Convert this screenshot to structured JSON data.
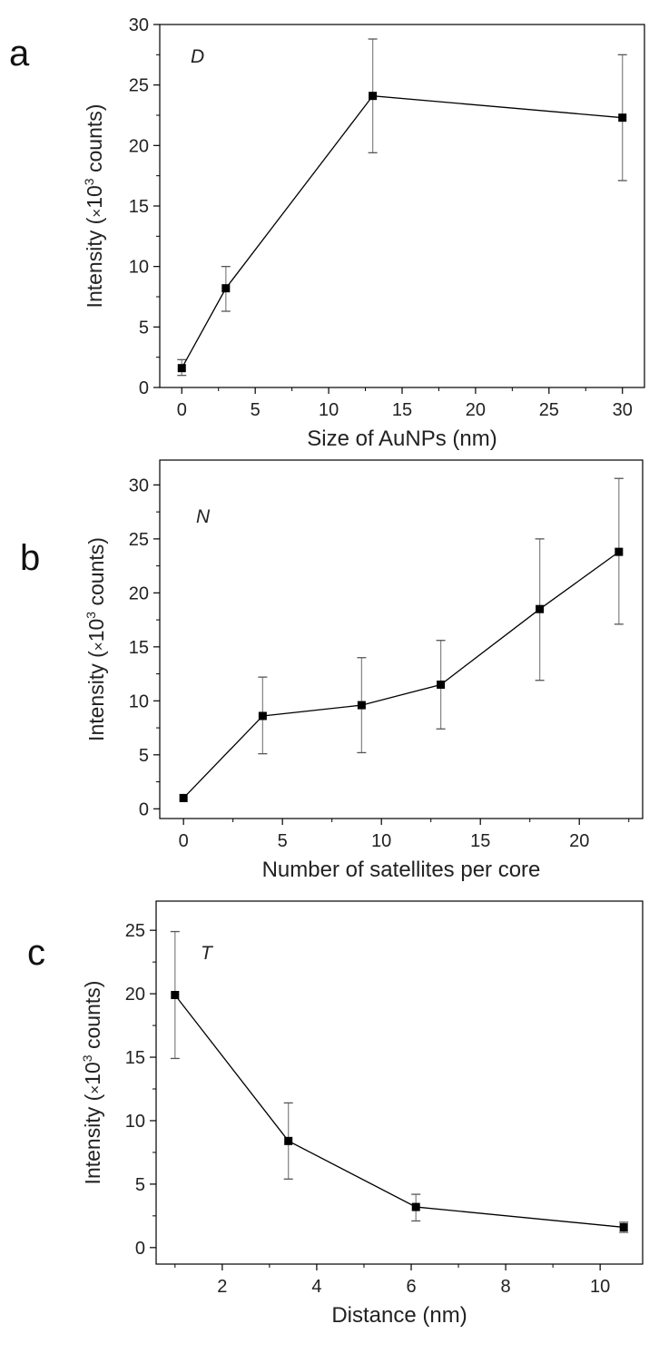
{
  "chart_data": [
    {
      "type": "line",
      "panel_letter": "a",
      "annotation": "D",
      "xlabel": "Size of AuNPs (nm)",
      "ylabel_prefix": "Intensity (",
      "ylabel_times": "×",
      "ylabel_base": "10",
      "ylabel_sup": "3",
      "ylabel_suffix": " counts)",
      "xlim": [
        -1.5,
        31.5
      ],
      "ylim": [
        0,
        30
      ],
      "xticks": [
        0,
        5,
        10,
        15,
        20,
        25,
        30
      ],
      "yticks": [
        0,
        5,
        10,
        15,
        20,
        25,
        30
      ],
      "grid": false,
      "series": [
        {
          "x": [
            0,
            3,
            13,
            30
          ],
          "y": [
            1.6,
            8.2,
            24.1,
            22.3
          ],
          "err_low": [
            1.0,
            6.3,
            19.4,
            17.1
          ],
          "err_high": [
            2.3,
            10.0,
            28.8,
            27.5
          ]
        }
      ]
    },
    {
      "type": "line",
      "panel_letter": "b",
      "annotation": "N",
      "xlabel": "Number of satellites per core",
      "ylabel_prefix": "Intensity (",
      "ylabel_times": "×",
      "ylabel_base": "10",
      "ylabel_sup": "3",
      "ylabel_suffix": " counts)",
      "xlim": [
        -1.2,
        23.2
      ],
      "ylim": [
        -0.9,
        32.3
      ],
      "xticks": [
        0,
        5,
        10,
        15,
        20
      ],
      "yticks": [
        0,
        5,
        10,
        15,
        20,
        25,
        30
      ],
      "grid": false,
      "series": [
        {
          "x": [
            0,
            4,
            9,
            13,
            18,
            22
          ],
          "y": [
            1.0,
            8.6,
            9.6,
            11.5,
            18.5,
            23.8
          ],
          "err_low": [
            1.0,
            5.1,
            5.2,
            7.4,
            11.9,
            17.1
          ],
          "err_high": [
            1.0,
            12.2,
            14.0,
            15.6,
            25.0,
            30.6
          ]
        }
      ]
    },
    {
      "type": "line",
      "panel_letter": "c",
      "annotation": "T",
      "xlabel": "Distance (nm)",
      "ylabel_prefix": "Intensity (",
      "ylabel_times": "×",
      "ylabel_base": "10",
      "ylabel_sup": "3",
      "ylabel_suffix": " counts)",
      "xlim": [
        0.6,
        10.9
      ],
      "ylim": [
        -1.3,
        27.3
      ],
      "xticks": [
        2,
        4,
        6,
        8,
        10
      ],
      "yticks": [
        0,
        5,
        10,
        15,
        20,
        25
      ],
      "grid": false,
      "series": [
        {
          "x": [
            1.0,
            3.4,
            6.1,
            10.5
          ],
          "y": [
            19.9,
            8.4,
            3.2,
            1.6
          ],
          "err_low": [
            14.9,
            5.4,
            2.1,
            1.2
          ],
          "err_high": [
            24.9,
            11.4,
            4.2,
            2.0
          ]
        }
      ]
    }
  ]
}
